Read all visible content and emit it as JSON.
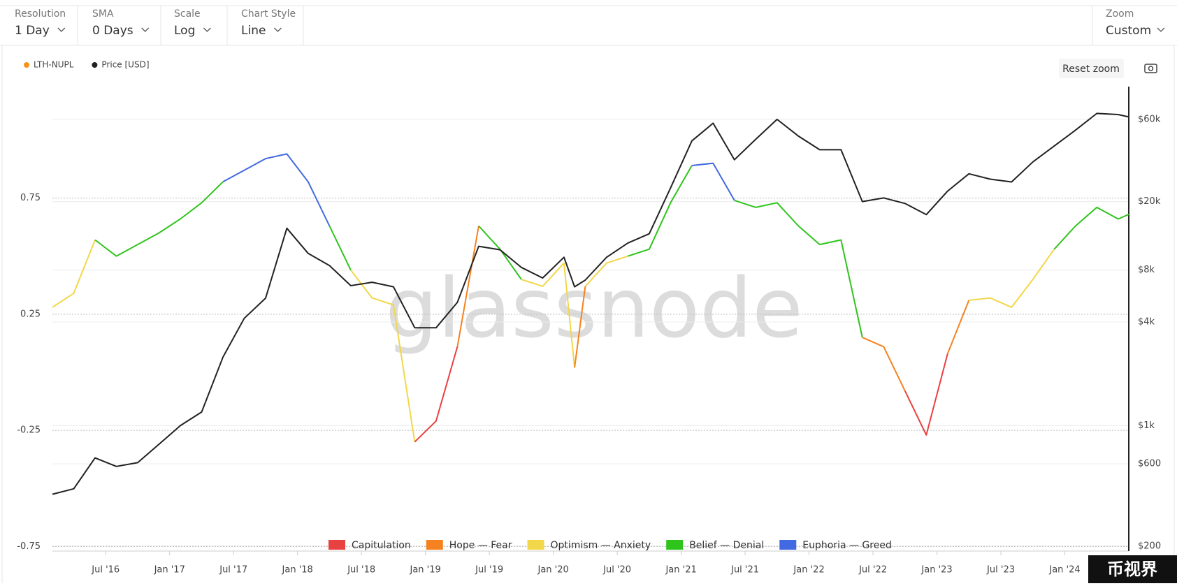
{
  "controls": [
    {
      "label": "Resolution",
      "value": "1 Day"
    },
    {
      "label": "SMA",
      "value": "0 Days"
    },
    {
      "label": "Scale",
      "value": "Log"
    },
    {
      "label": "Chart Style",
      "value": "Line"
    }
  ],
  "zoom": {
    "label": "Zoom",
    "value": "Custom"
  },
  "reset_zoom": "Reset zoom",
  "watermark": "glassnode",
  "corner_mark": "币视界",
  "chart_data": {
    "type": "line",
    "x": [
      "2016-02",
      "2016-04",
      "2016-06",
      "2016-08",
      "2016-10",
      "2016-12",
      "2017-02",
      "2017-04",
      "2017-06",
      "2017-08",
      "2017-10",
      "2017-12",
      "2018-02",
      "2018-04",
      "2018-06",
      "2018-08",
      "2018-10",
      "2018-12",
      "2019-02",
      "2019-04",
      "2019-06",
      "2019-08",
      "2019-10",
      "2019-12",
      "2020-02",
      "2020-03",
      "2020-04",
      "2020-06",
      "2020-08",
      "2020-10",
      "2020-12",
      "2021-02",
      "2021-04",
      "2021-06",
      "2021-08",
      "2021-10",
      "2021-12",
      "2022-02",
      "2022-04",
      "2022-06",
      "2022-08",
      "2022-10",
      "2022-12",
      "2023-02",
      "2023-04",
      "2023-06",
      "2023-08",
      "2023-10",
      "2023-12",
      "2024-02",
      "2024-04",
      "2024-06",
      "2024-07"
    ],
    "xlim": [
      "2016-02",
      "2024-07"
    ],
    "xticks": [
      {
        "value": "2016-07",
        "label": "Jul '16"
      },
      {
        "value": "2017-01",
        "label": "Jan '17"
      },
      {
        "value": "2017-07",
        "label": "Jul '17"
      },
      {
        "value": "2018-01",
        "label": "Jan '18"
      },
      {
        "value": "2018-07",
        "label": "Jul '18"
      },
      {
        "value": "2019-01",
        "label": "Jan '19"
      },
      {
        "value": "2019-07",
        "label": "Jul '19"
      },
      {
        "value": "2020-01",
        "label": "Jan '20"
      },
      {
        "value": "2020-07",
        "label": "Jul '20"
      },
      {
        "value": "2021-01",
        "label": "Jan '21"
      },
      {
        "value": "2021-07",
        "label": "Jul '21"
      },
      {
        "value": "2022-01",
        "label": "Jan '22"
      },
      {
        "value": "2022-07",
        "label": "Jul '22"
      },
      {
        "value": "2023-01",
        "label": "Jan '23"
      },
      {
        "value": "2023-07",
        "label": "Jul '23"
      },
      {
        "value": "2024-01",
        "label": "Jan '24"
      }
    ],
    "ylim": [
      -0.77,
      1.23
    ],
    "yticks": [
      0.75,
      0.25,
      -0.25,
      -0.75
    ],
    "y2lim": [
      187,
      93000
    ],
    "y2log": true,
    "y2ticks": [
      {
        "value": 60000,
        "label": "$60k"
      },
      {
        "value": 20000,
        "label": "$20k"
      },
      {
        "value": 8000,
        "label": "$8k"
      },
      {
        "value": 4000,
        "label": "$4k"
      },
      {
        "value": 1000,
        "label": "$1k"
      },
      {
        "value": 600,
        "label": "$600"
      },
      {
        "value": 200,
        "label": "$200"
      }
    ],
    "grid": true,
    "series": [
      {
        "name": "LTH-NUPL",
        "color": "#f7931a",
        "axis": "y",
        "values": [
          0.28,
          0.34,
          0.57,
          0.5,
          0.55,
          0.6,
          0.66,
          0.73,
          0.82,
          0.87,
          0.92,
          0.94,
          0.82,
          0.63,
          0.44,
          0.32,
          0.29,
          -0.3,
          -0.21,
          0.11,
          0.63,
          0.53,
          0.4,
          0.37,
          0.47,
          0.02,
          0.37,
          0.47,
          0.5,
          0.53,
          0.73,
          0.89,
          0.9,
          0.74,
          0.71,
          0.73,
          0.63,
          0.55,
          0.57,
          0.15,
          0.11,
          -0.08,
          -0.27,
          0.08,
          0.31,
          0.32,
          0.28,
          0.4,
          0.53,
          0.63,
          0.71,
          0.66,
          0.68
        ],
        "zones": [
          {
            "name": "Capitulation",
            "color": "#e84142",
            "max": 0
          },
          {
            "name": "Hope — Fear",
            "color": "#f5821f",
            "max": 0.25
          },
          {
            "name": "Optimism — Anxiety",
            "color": "#f2d74a",
            "max": 0.5
          },
          {
            "name": "Belief — Denial",
            "color": "#2fc41c",
            "max": 0.75
          },
          {
            "name": "Euphoria — Greed",
            "color": "#4169e1"
          }
        ]
      },
      {
        "name": "Price [USD]",
        "color": "#222222",
        "axis": "y2",
        "values": [
          400,
          430,
          650,
          580,
          610,
          780,
          1000,
          1200,
          2500,
          4200,
          5500,
          14000,
          10000,
          8500,
          6500,
          6800,
          6400,
          3700,
          3700,
          5200,
          11000,
          10500,
          8300,
          7200,
          9500,
          6400,
          7000,
          9500,
          11500,
          13000,
          24000,
          45000,
          57000,
          35000,
          46000,
          60000,
          48000,
          40000,
          40000,
          20000,
          21000,
          19500,
          16800,
          23000,
          29000,
          27000,
          26000,
          34000,
          42000,
          52000,
          65000,
          64000,
          62000
        ]
      }
    ]
  }
}
